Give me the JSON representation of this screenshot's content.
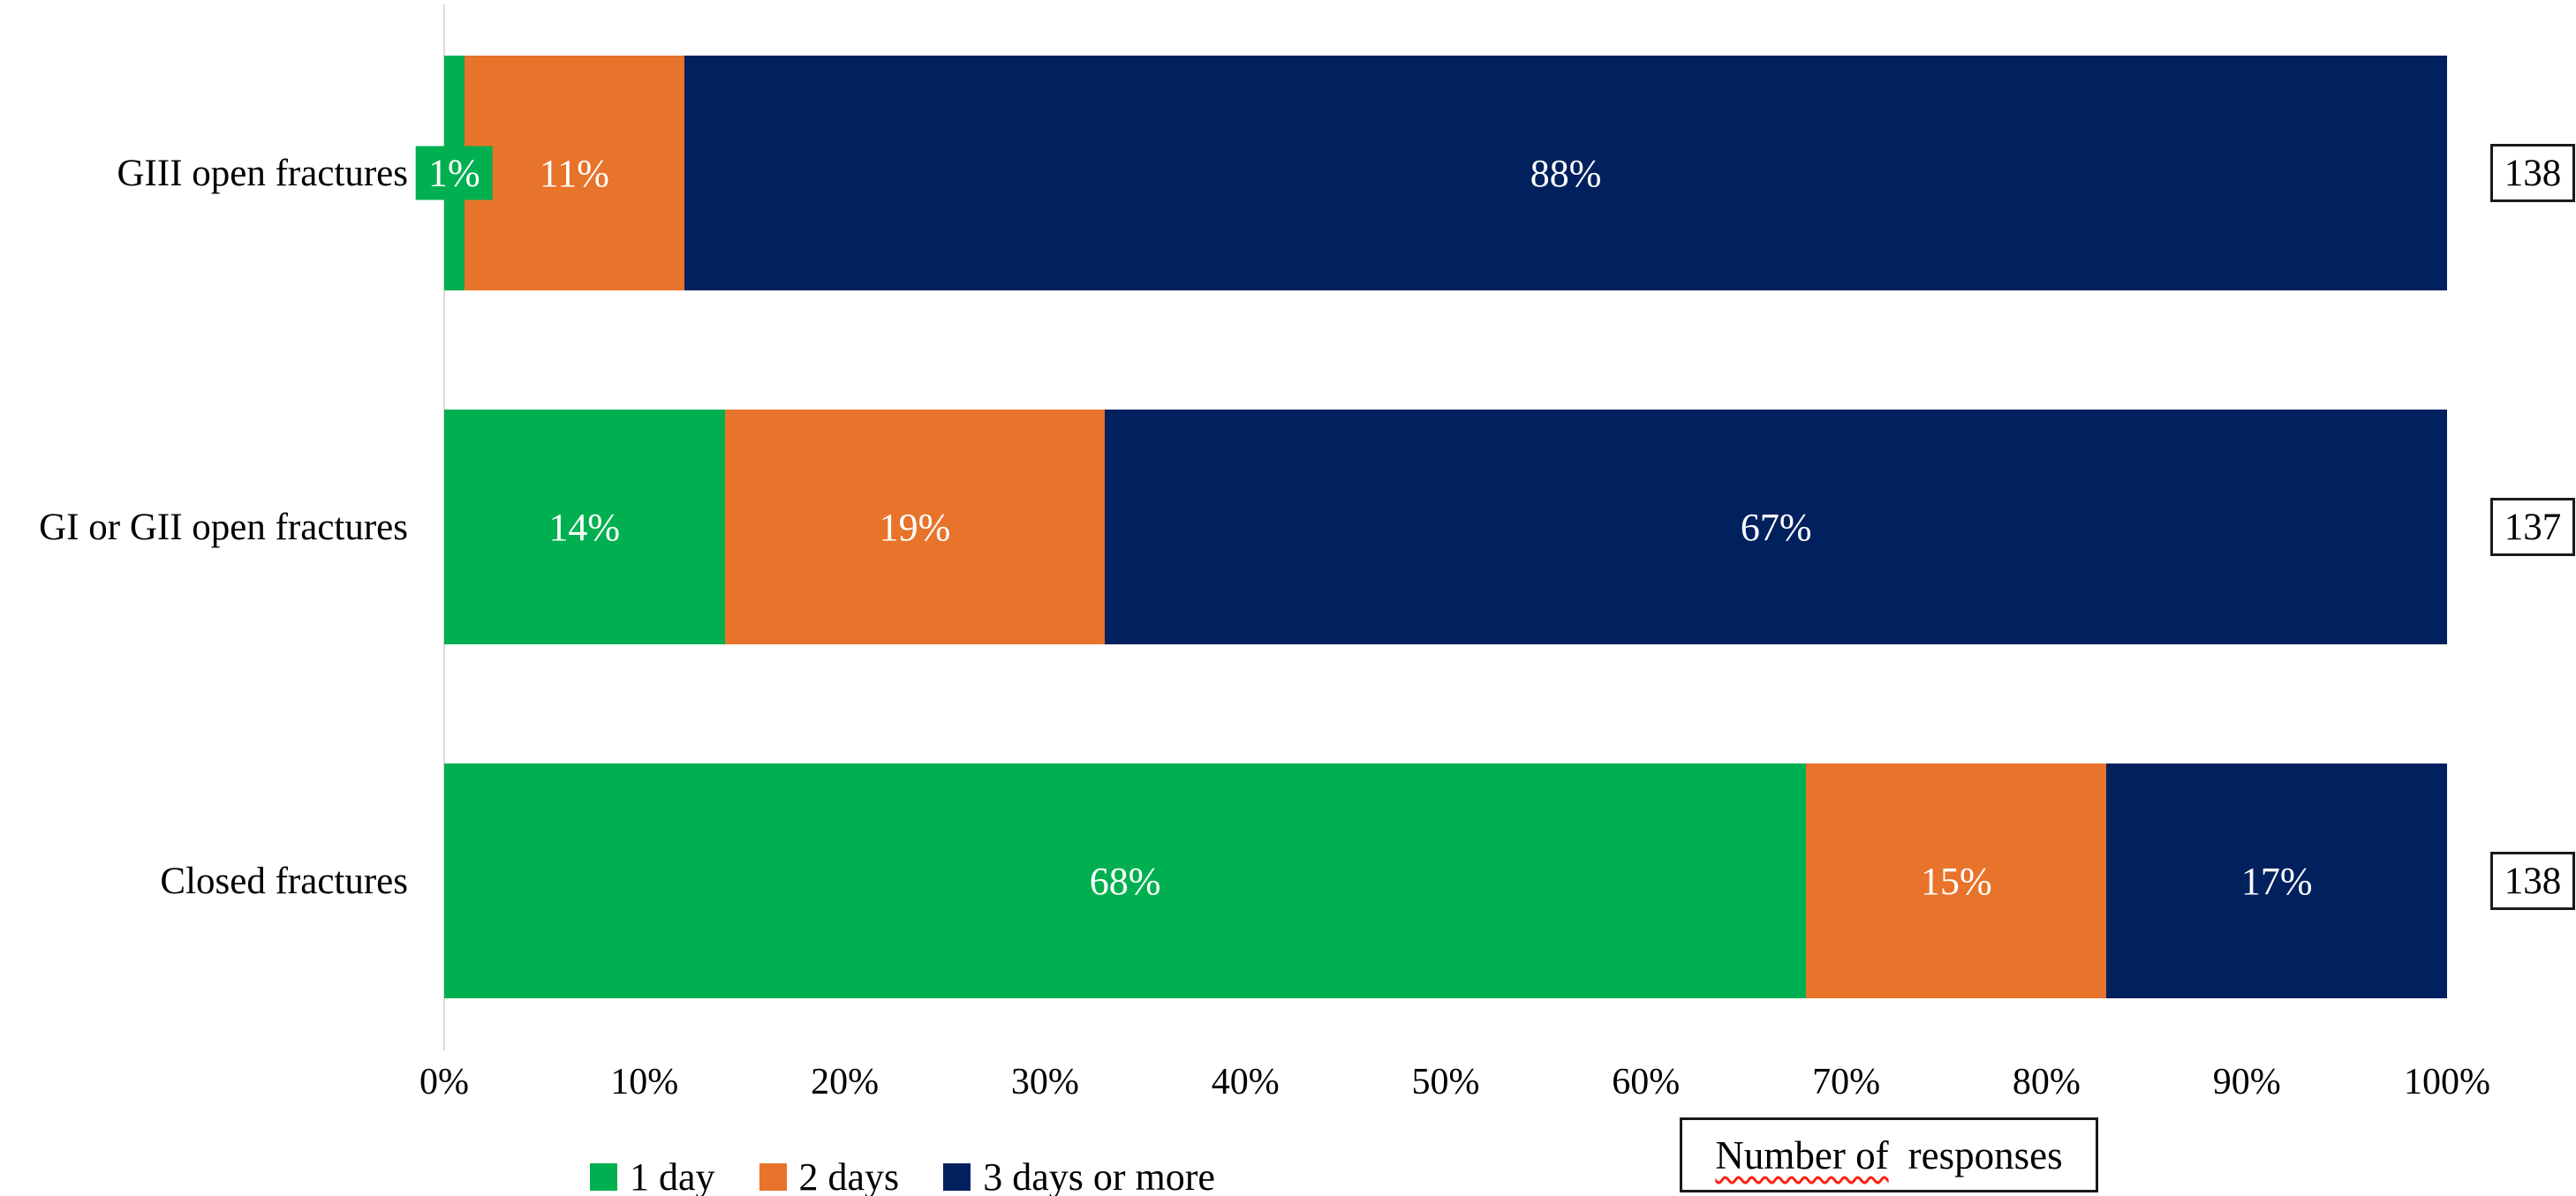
{
  "chart_data": {
    "type": "bar",
    "orientation": "horizontal_stacked",
    "unit": "percent",
    "title": "",
    "xlabel": "",
    "ylabel": "",
    "xlim": [
      0,
      100
    ],
    "grid": "off",
    "legend_position": "bottom-left",
    "categories": [
      "GIII open fractures",
      "GI or GII open fractures",
      "Closed fractures"
    ],
    "series": [
      {
        "name": "1 day",
        "color": "#00B050",
        "values": [
          1,
          14,
          68
        ],
        "labels": [
          "1%",
          "14%",
          "68%"
        ]
      },
      {
        "name": "2 days",
        "color": "#E8732A",
        "values": [
          11,
          19,
          15
        ],
        "labels": [
          "11%",
          "19%",
          "15%"
        ]
      },
      {
        "name": "3 days or more",
        "color": "#01205E",
        "values": [
          88,
          67,
          17
        ],
        "labels": [
          "88%",
          "67%",
          "17%"
        ]
      }
    ],
    "responses": [
      138,
      137,
      138
    ],
    "x_ticks": [
      "0%",
      "10%",
      "20%",
      "30%",
      "40%",
      "50%",
      "60%",
      "70%",
      "80%",
      "90%",
      "100%"
    ],
    "annotations": {
      "responses_box_word_underlined": "Number of",
      "responses_box_word_rest": "responses"
    }
  }
}
